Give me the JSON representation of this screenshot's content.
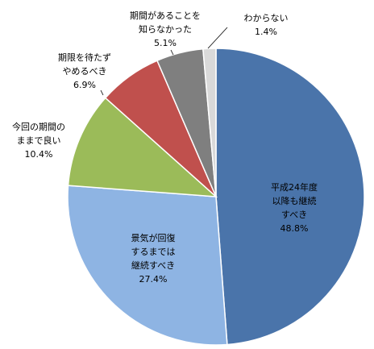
{
  "chart_data": {
    "type": "pie",
    "categories": [
      "平成24年度\n以降も継続\nすべき",
      "景気が回復\nするまでは\n継続すべき",
      "今回の期間の\nままで良い",
      "期限を待たず\nやめるべき",
      "期間があることを\n知らなかった",
      "わからない"
    ],
    "values": [
      48.8,
      27.4,
      10.4,
      6.9,
      5.1,
      1.4
    ],
    "value_labels": [
      "48.8%",
      "27.4%",
      "10.4%",
      "6.9%",
      "5.1%",
      "1.4%"
    ],
    "colors": [
      "#4a74aa",
      "#8eb4e3",
      "#9bbb59",
      "#c0504d",
      "#7f7f7f",
      "#d9d9d9"
    ]
  }
}
